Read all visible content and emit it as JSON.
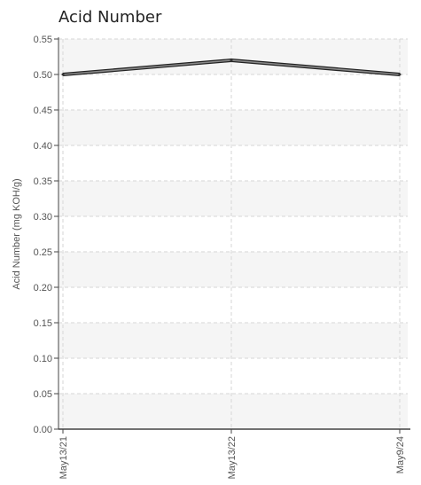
{
  "chart_data": {
    "type": "line",
    "title": "Acid Number",
    "xlabel": "",
    "ylabel": "Acid Number (mg KOH/g)",
    "categories": [
      "May13/21",
      "May13/22",
      "May9/24"
    ],
    "series": [
      {
        "values": [
          0.5,
          0.52,
          0.5
        ]
      }
    ],
    "ylim": [
      0,
      0.55
    ],
    "yticks": [
      "0.00",
      "0.05",
      "0.10",
      "0.15",
      "0.20",
      "0.25",
      "0.30",
      "0.35",
      "0.40",
      "0.45",
      "0.50",
      "0.55"
    ],
    "grid": true,
    "legend": "none",
    "colors": {
      "line": "#555555",
      "band": "#f5f5f5",
      "grid": "#d6d6d6",
      "axis": "#444444",
      "text": "#555555"
    }
  }
}
